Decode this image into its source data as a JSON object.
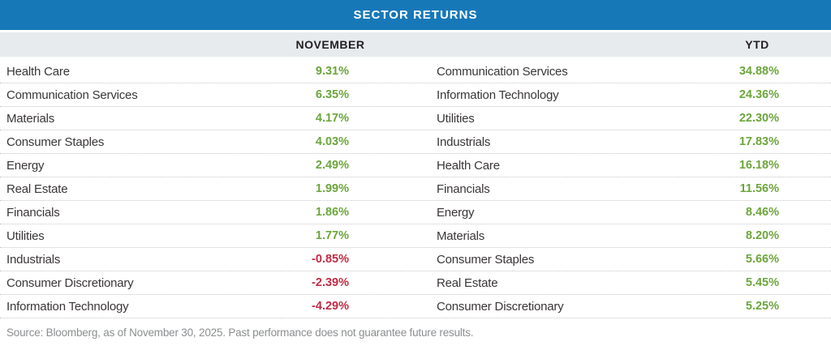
{
  "title": "SECTOR RETURNS",
  "columns": {
    "left": "NOVEMBER",
    "right": "YTD"
  },
  "footer": "Source: Bloomberg, as of November 30, 2025. Past performance does not guarantee future results.",
  "colors": {
    "header_bg": "#1778B8",
    "header_text": "#FFFFFF",
    "subheader_bg": "#E7EBEE",
    "positive": "#6CA63C",
    "negative": "#C02B45",
    "label_text": "#3A3637",
    "divider": "#C6C6C6",
    "footer_text": "#8C8E90"
  },
  "chart_data": {
    "type": "table",
    "title": "SECTOR RETURNS",
    "columns": [
      "NOVEMBER",
      "YTD"
    ],
    "november": [
      {
        "sector": "Health Care",
        "return_pct": 9.31,
        "label": "9.31%"
      },
      {
        "sector": "Communication Services",
        "return_pct": 6.35,
        "label": "6.35%"
      },
      {
        "sector": "Materials",
        "return_pct": 4.17,
        "label": "4.17%"
      },
      {
        "sector": "Consumer Staples",
        "return_pct": 4.03,
        "label": "4.03%"
      },
      {
        "sector": "Energy",
        "return_pct": 2.49,
        "label": "2.49%"
      },
      {
        "sector": "Real Estate",
        "return_pct": 1.99,
        "label": "1.99%"
      },
      {
        "sector": "Financials",
        "return_pct": 1.86,
        "label": "1.86%"
      },
      {
        "sector": "Utilities",
        "return_pct": 1.77,
        "label": "1.77%"
      },
      {
        "sector": "Industrials",
        "return_pct": -0.85,
        "label": "-0.85%"
      },
      {
        "sector": "Consumer Discretionary",
        "return_pct": -2.39,
        "label": "-2.39%"
      },
      {
        "sector": "Information Technology",
        "return_pct": -4.29,
        "label": "-4.29%"
      }
    ],
    "ytd": [
      {
        "sector": "Communication Services",
        "return_pct": 34.88,
        "label": "34.88%"
      },
      {
        "sector": "Information Technology",
        "return_pct": 24.36,
        "label": "24.36%"
      },
      {
        "sector": "Utilities",
        "return_pct": 22.3,
        "label": "22.30%"
      },
      {
        "sector": "Industrials",
        "return_pct": 17.83,
        "label": "17.83%"
      },
      {
        "sector": "Health Care",
        "return_pct": 16.18,
        "label": "16.18%"
      },
      {
        "sector": "Financials",
        "return_pct": 11.56,
        "label": "11.56%"
      },
      {
        "sector": "Energy",
        "return_pct": 8.46,
        "label": "8.46%"
      },
      {
        "sector": "Materials",
        "return_pct": 8.2,
        "label": "8.20%"
      },
      {
        "sector": "Consumer Staples",
        "return_pct": 5.66,
        "label": "5.66%"
      },
      {
        "sector": "Real Estate",
        "return_pct": 5.45,
        "label": "5.45%"
      },
      {
        "sector": "Consumer Discretionary",
        "return_pct": 5.25,
        "label": "5.25%"
      }
    ]
  }
}
